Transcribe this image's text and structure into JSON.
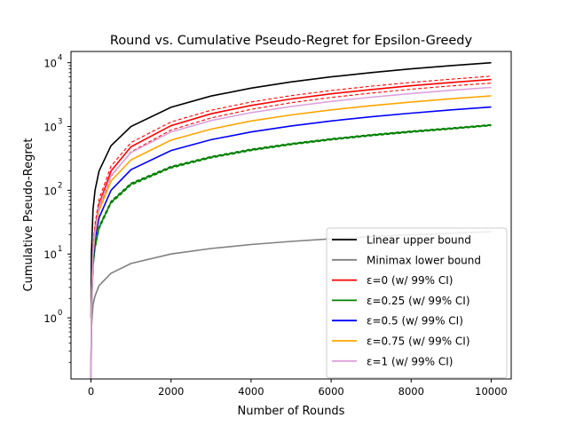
{
  "chart_data": {
    "type": "line",
    "title": "Round vs. Cumulative Pseudo-Regret for Epsilon-Greedy",
    "xlabel": "Number of Rounds",
    "ylabel": "Cumulative Pseudo-Regret",
    "xlim": [
      -500,
      10500
    ],
    "ylim": [
      0.11,
      15000
    ],
    "yscale": "log",
    "grid": false,
    "legend_position": "lower right",
    "x_ticks": [
      0,
      2000,
      4000,
      6000,
      8000,
      10000
    ],
    "x_tick_labels": [
      "0",
      "2000",
      "4000",
      "6000",
      "8000",
      "10000"
    ],
    "y_ticks": [
      1,
      10,
      100,
      1000,
      10000
    ],
    "y_tick_labels": [
      "10",
      "10",
      "10",
      "10",
      "10"
    ],
    "y_tick_exponents": [
      "0",
      "1",
      "2",
      "3",
      "4"
    ],
    "x": [
      1,
      10,
      50,
      100,
      200,
      500,
      1000,
      2000,
      3000,
      4000,
      5000,
      6000,
      7000,
      8000,
      9000,
      10000
    ],
    "series": [
      {
        "name": "Linear upper bound",
        "color": "#000000",
        "values": [
          1,
          10,
          50,
          100,
          200,
          500,
          1000,
          2000,
          3000,
          4000,
          5000,
          6000,
          7000,
          8000,
          9000,
          10000
        ]
      },
      {
        "name": "Minimax lower bound",
        "color": "#808080",
        "values": [
          0.22,
          0.7,
          1.6,
          2.2,
          3.2,
          5.0,
          7.1,
          10,
          12.2,
          14.1,
          15.8,
          17.3,
          18.7,
          20,
          21.2,
          22.4
        ]
      },
      {
        "name": "ε=0 (w/ 99% CI)",
        "color": "#ff0000",
        "values": [
          0.1,
          1.6,
          11,
          25,
          60,
          200,
          480,
          1030,
          1580,
          2140,
          2700,
          3250,
          3800,
          4360,
          4910,
          5450
        ],
        "ci_upper": [
          0.13,
          2.0,
          13,
          30,
          72,
          240,
          560,
          1180,
          1800,
          2420,
          3040,
          3660,
          4280,
          4900,
          5520,
          6150
        ],
        "ci_lower": [
          0.08,
          1.3,
          9,
          20,
          50,
          165,
          400,
          880,
          1360,
          1860,
          2360,
          2850,
          3340,
          3840,
          4330,
          4800
        ]
      },
      {
        "name": "ε=0.25 (w/ 99% CI)",
        "color": "#008000",
        "values": [
          0.1,
          1.2,
          6.5,
          13,
          26,
          65,
          125,
          230,
          330,
          430,
          530,
          630,
          730,
          830,
          930,
          1050
        ],
        "ci_upper": [
          0.11,
          1.3,
          7.0,
          14,
          27.5,
          68,
          130,
          238,
          340,
          443,
          545,
          648,
          750,
          852,
          955,
          1075
        ],
        "ci_lower": [
          0.09,
          1.1,
          6.0,
          12,
          24.5,
          62,
          120,
          222,
          320,
          417,
          515,
          612,
          710,
          808,
          905,
          1025
        ]
      },
      {
        "name": "ε=0.5 (w/ 99% CI)",
        "color": "#0000ff",
        "values": [
          0.1,
          1.3,
          8,
          17,
          37,
          100,
          210,
          420,
          620,
          820,
          1020,
          1220,
          1420,
          1620,
          1820,
          2020
        ]
      },
      {
        "name": "ε=0.75 (w/ 99% CI)",
        "color": "#ffa500",
        "values": [
          0.1,
          1.4,
          9.5,
          21,
          48,
          140,
          300,
          610,
          910,
          1220,
          1520,
          1820,
          2120,
          2420,
          2720,
          3020
        ]
      },
      {
        "name": "ε=1 (w/ 99% CI)",
        "color": "#dda0dd",
        "values": [
          0.1,
          1.5,
          10.5,
          23,
          55,
          170,
          390,
          820,
          1240,
          1650,
          2060,
          2470,
          2880,
          3290,
          3700,
          4100
        ]
      }
    ]
  }
}
